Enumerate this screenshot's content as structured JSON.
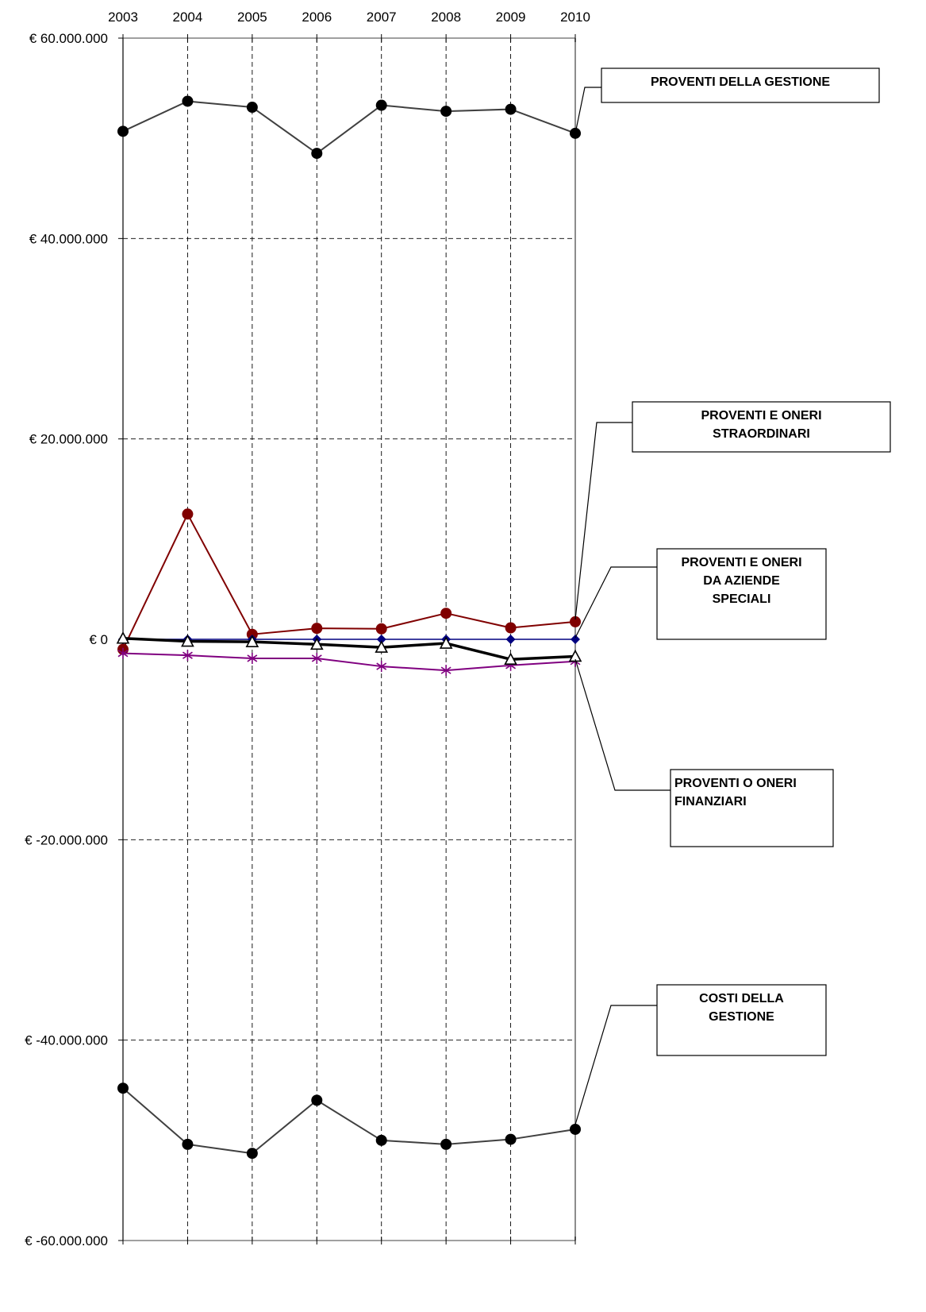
{
  "chart_data": {
    "type": "line",
    "x": [
      "2003",
      "2004",
      "2005",
      "2006",
      "2007",
      "2008",
      "2009",
      "2010"
    ],
    "y_ticks": [
      "€ 60.000.000",
      "€ 40.000.000",
      "€ 20.000.000",
      "€ 0",
      "€ -20.000.000",
      "€ -40.000.000",
      "€ -60.000.000"
    ],
    "ylim": [
      -60000000,
      60000000
    ],
    "grid": true,
    "series": [
      {
        "name": "PROVENTI DELLA GESTIONE",
        "values": [
          50700000,
          53700000,
          53100000,
          48500000,
          53300000,
          52700000,
          52900000,
          50500000
        ],
        "color": "#404040",
        "marker": "circle"
      },
      {
        "name": "PROVENTI E ONERI STRAORDINARI",
        "values": [
          -1000000,
          12500000,
          500000,
          1100000,
          1050000,
          2600000,
          1150000,
          1750000
        ],
        "color": "#800000",
        "marker": "circle"
      },
      {
        "name": "PROVENTI E ONERI DA AZIENDE SPECIALI",
        "values": [
          0,
          0,
          0,
          0,
          0,
          0,
          0,
          0
        ],
        "color": "#000080",
        "marker": "diamond"
      },
      {
        "name": "PROVENTI O ONERI FINANZIARI",
        "values": [
          100000,
          -200000,
          -250000,
          -500000,
          -800000,
          -400000,
          -2000000,
          -1700000
        ],
        "color": "#000000",
        "marker": "triangle"
      },
      {
        "name": "",
        "values": [
          -1400000,
          -1600000,
          -1900000,
          -1900000,
          -2700000,
          -3100000,
          -2600000,
          -2200000
        ],
        "color": "#800080",
        "marker": "star"
      },
      {
        "name": "COSTI DELLA GESTIONE",
        "values": [
          -44800000,
          -50400000,
          -51300000,
          -46000000,
          -50000000,
          -50400000,
          -49900000,
          -48900000
        ],
        "color": "#404040",
        "marker": "circle"
      }
    ],
    "callouts": [
      {
        "series": 0,
        "lines": [
          "PROVENTI DELLA GESTIONE"
        ]
      },
      {
        "series": 1,
        "lines": [
          "PROVENTI E ONERI",
          "STRAORDINARI"
        ]
      },
      {
        "series": 2,
        "lines": [
          "PROVENTI E ONERI",
          "DA AZIENDE",
          "SPECIALI"
        ]
      },
      {
        "series": 3,
        "lines": [
          "PROVENTI O ONERI",
          "FINANZIARI"
        ]
      },
      {
        "series": 5,
        "lines": [
          "COSTI DELLA",
          "GESTIONE"
        ]
      }
    ]
  }
}
